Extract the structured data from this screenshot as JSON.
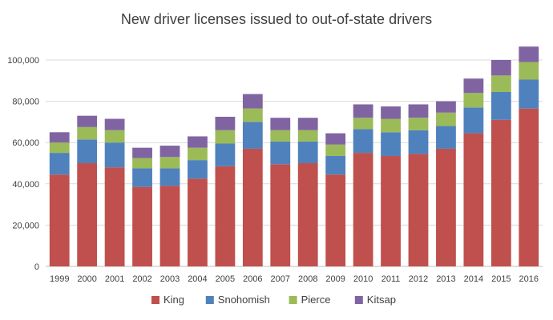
{
  "chart_data": {
    "type": "bar",
    "stacked": true,
    "title": "New driver licenses issued to out-of-state drivers",
    "xlabel": "",
    "ylabel": "",
    "ylim": [
      0,
      100000
    ],
    "yticks": [
      "0",
      "20,000",
      "40,000",
      "60,000",
      "80,000",
      "100,000"
    ],
    "grid": true,
    "legend_position": "bottom",
    "categories": [
      "1999",
      "2000",
      "2001",
      "2002",
      "2003",
      "2004",
      "2005",
      "2006",
      "2007",
      "2008",
      "2009",
      "2010",
      "2011",
      "2012",
      "2013",
      "2014",
      "2015",
      "2016"
    ],
    "series": [
      {
        "name": "King",
        "color": "#c0504d",
        "values": [
          44500,
          50000,
          48000,
          38500,
          39000,
          42500,
          48500,
          57000,
          49500,
          50000,
          44500,
          55000,
          53500,
          54500,
          57000,
          64500,
          71000,
          76500
        ]
      },
      {
        "name": "Snohomish",
        "color": "#4f81bd",
        "values": [
          10500,
          11500,
          12000,
          9000,
          8500,
          9000,
          11000,
          13000,
          11000,
          10500,
          9000,
          11500,
          11500,
          11500,
          11000,
          12500,
          13500,
          14000
        ]
      },
      {
        "name": "Pierce",
        "color": "#9bbb59",
        "values": [
          5000,
          6000,
          6000,
          5000,
          5500,
          6000,
          6500,
          6500,
          5500,
          5500,
          5500,
          5500,
          6500,
          6000,
          6500,
          7000,
          8000,
          8500
        ]
      },
      {
        "name": "Kitsap",
        "color": "#8064a2",
        "values": [
          5000,
          5500,
          5500,
          5000,
          5500,
          5500,
          6500,
          7000,
          6000,
          6000,
          5500,
          6500,
          6000,
          6500,
          5500,
          7000,
          7500,
          7500
        ]
      }
    ]
  }
}
